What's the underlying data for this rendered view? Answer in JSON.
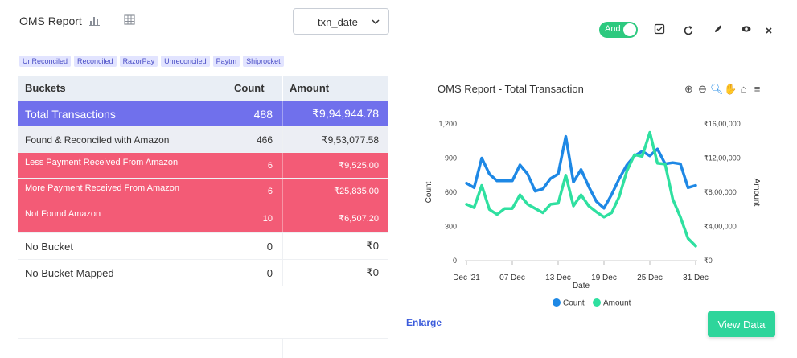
{
  "header": {
    "title": "OMS Report",
    "date_field": "txn_date",
    "toggle_label": "And",
    "icons": [
      "bar-chart-icon",
      "table-icon",
      "chevron-down-icon",
      "checkbox-icon",
      "refresh-icon",
      "edit-icon",
      "eye-icon",
      "close-icon"
    ]
  },
  "tags": [
    "UnReconciled",
    "Reconciled",
    "RazorPay",
    "Unreconciled",
    "Paytm",
    "Shiprocket"
  ],
  "table": {
    "headers": [
      "Buckets",
      "Count",
      "Amount"
    ],
    "rows": [
      {
        "bucket": "Total  Transactions",
        "count": "488",
        "amount": "₹9,94,944.78",
        "style": "total"
      },
      {
        "bucket": "Found & Reconciled with Amazon",
        "count": "466",
        "amount": "₹9,53,077.58",
        "style": "found"
      },
      {
        "bucket": "Less Payment Received From Amazon",
        "count": "6",
        "amount": "₹9,525.00",
        "style": "red"
      },
      {
        "bucket": "More Payment Received From Amazon",
        "count": "6",
        "amount": "₹25,835.00",
        "style": "red"
      },
      {
        "bucket": "Not Found Amazon",
        "count": "10",
        "amount": "₹6,507.20",
        "style": "red"
      },
      {
        "bucket": "No Bucket",
        "count": "0",
        "amount": "₹0",
        "style": "plain"
      },
      {
        "bucket": "No Bucket Mapped",
        "count": "0",
        "amount": "₹0",
        "style": "plain"
      }
    ],
    "colors": {
      "total": "#7070ec",
      "found": "#eceef4",
      "red": "#f35b76"
    }
  },
  "chart_data": {
    "type": "line",
    "title": "OMS Report - Total Transaction",
    "xlabel": "Date",
    "ylabel": "Count",
    "y2label": "Amount",
    "x_ticks": [
      "Dec '21",
      "07 Dec",
      "13 Dec",
      "19 Dec",
      "25 Dec",
      "31 Dec"
    ],
    "y_ticks": [
      "0",
      "300",
      "600",
      "900",
      "1,200"
    ],
    "y2_ticks": [
      "₹0",
      "₹4,00,000",
      "₹8,00,000",
      "₹12,00,000",
      "₹16,00,000"
    ],
    "ylim": [
      0,
      1200
    ],
    "y2lim": [
      0,
      1600000
    ],
    "x": [
      1,
      2,
      3,
      4,
      5,
      6,
      7,
      8,
      9,
      10,
      11,
      12,
      13,
      14,
      15,
      16,
      17,
      18,
      19,
      20,
      21,
      22,
      23,
      24,
      25,
      26,
      27,
      28,
      29,
      30,
      31
    ],
    "series": [
      {
        "name": "Count",
        "axis": "left",
        "color": "#1e88e5",
        "values": [
          680,
          640,
          900,
          760,
          700,
          700,
          700,
          840,
          760,
          610,
          630,
          720,
          760,
          1090,
          690,
          800,
          650,
          520,
          460,
          580,
          720,
          840,
          920,
          960,
          920,
          980,
          850,
          860,
          850,
          640,
          660
        ]
      },
      {
        "name": "Amount",
        "axis": "right",
        "color": "#2fe0a0",
        "values": [
          660000,
          620000,
          880000,
          600000,
          540000,
          610000,
          610000,
          770000,
          660000,
          610000,
          560000,
          660000,
          670000,
          1000000,
          640000,
          770000,
          640000,
          570000,
          510000,
          560000,
          750000,
          1050000,
          1240000,
          1220000,
          1500000,
          1140000,
          1130000,
          720000,
          510000,
          260000,
          170000
        ]
      }
    ],
    "legend": "bottom"
  },
  "footer": {
    "enlarge": "Enlarge",
    "view_data": "View Data"
  }
}
